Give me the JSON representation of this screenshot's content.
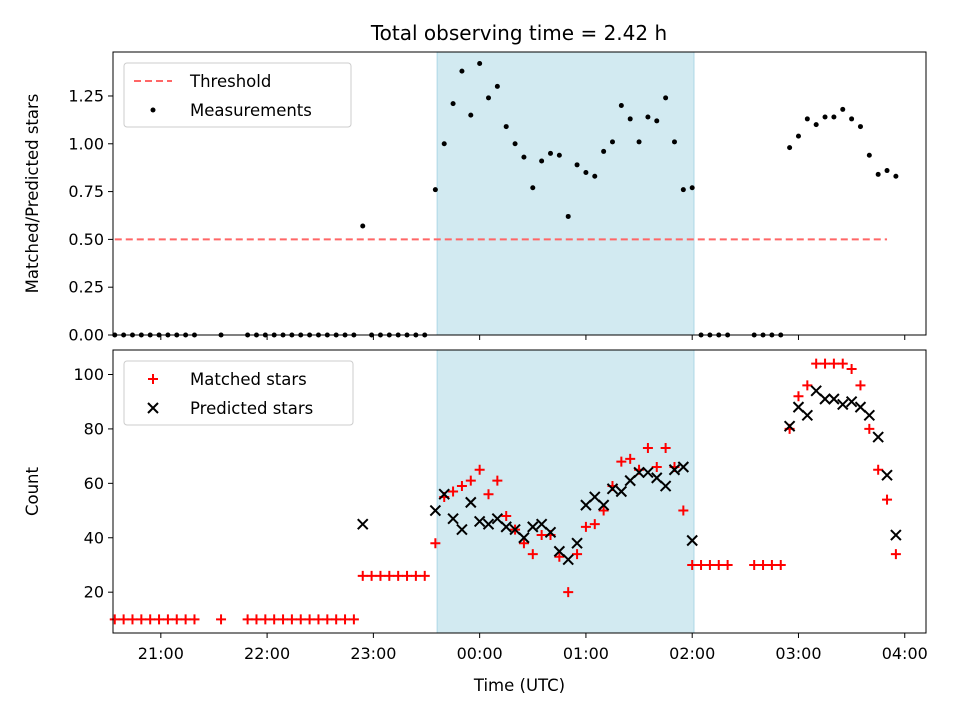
{
  "title": "Total observing time = 2.42 h",
  "colors": {
    "band": "#add8e6",
    "threshold": "#ff6666",
    "matched": "#ff0000",
    "predicted": "#000000",
    "measurement": "#000000"
  },
  "chart_data": [
    {
      "type": "scatter",
      "xlabel": "",
      "ylabel": "Matched/Predicted stars",
      "xlim": [
        "20:33",
        "04:12"
      ],
      "ylim": [
        0,
        1.48
      ],
      "yticks": [
        "0.00",
        "0.25",
        "0.50",
        "0.75",
        "1.00",
        "1.25"
      ],
      "shaded_interval": [
        "23:36",
        "02:01"
      ],
      "legend_position": "upper-left",
      "series": [
        {
          "name": "Threshold",
          "kind": "dashed-line",
          "x": [
            "20:34",
            "03:50"
          ],
          "y": [
            0.5,
            0.5
          ]
        },
        {
          "name": "Measurements",
          "kind": "dots",
          "points": [
            [
              "20:34",
              0
            ],
            [
              "20:39",
              0
            ],
            [
              "20:44",
              0
            ],
            [
              "20:49",
              0
            ],
            [
              "20:54",
              0
            ],
            [
              "20:59",
              0
            ],
            [
              "21:04",
              0
            ],
            [
              "21:09",
              0
            ],
            [
              "21:14",
              0
            ],
            [
              "21:19",
              0
            ],
            [
              "21:34",
              0
            ],
            [
              "21:49",
              0
            ],
            [
              "21:54",
              0
            ],
            [
              "21:59",
              0
            ],
            [
              "22:04",
              0
            ],
            [
              "22:09",
              0
            ],
            [
              "22:14",
              0
            ],
            [
              "22:19",
              0
            ],
            [
              "22:24",
              0
            ],
            [
              "22:29",
              0
            ],
            [
              "22:34",
              0
            ],
            [
              "22:39",
              0
            ],
            [
              "22:44",
              0
            ],
            [
              "22:49",
              0
            ],
            [
              "22:54",
              0.57
            ],
            [
              "22:59",
              0
            ],
            [
              "23:04",
              0
            ],
            [
              "23:09",
              0
            ],
            [
              "23:14",
              0
            ],
            [
              "23:19",
              0
            ],
            [
              "23:24",
              0
            ],
            [
              "23:29",
              0
            ],
            [
              "23:35",
              0.76
            ],
            [
              "23:40",
              1.0
            ],
            [
              "23:45",
              1.21
            ],
            [
              "23:50",
              1.38
            ],
            [
              "23:55",
              1.15
            ],
            [
              "00:00",
              1.42
            ],
            [
              "00:05",
              1.24
            ],
            [
              "00:10",
              1.3
            ],
            [
              "00:15",
              1.09
            ],
            [
              "00:20",
              1.0
            ],
            [
              "00:25",
              0.93
            ],
            [
              "00:30",
              0.77
            ],
            [
              "00:35",
              0.91
            ],
            [
              "00:40",
              0.95
            ],
            [
              "00:45",
              0.94
            ],
            [
              "00:50",
              0.62
            ],
            [
              "00:55",
              0.89
            ],
            [
              "01:00",
              0.85
            ],
            [
              "01:05",
              0.83
            ],
            [
              "01:10",
              0.96
            ],
            [
              "01:15",
              1.01
            ],
            [
              "01:20",
              1.2
            ],
            [
              "01:25",
              1.13
            ],
            [
              "01:30",
              1.01
            ],
            [
              "01:35",
              1.14
            ],
            [
              "01:40",
              1.12
            ],
            [
              "01:45",
              1.24
            ],
            [
              "01:50",
              1.01
            ],
            [
              "01:55",
              0.76
            ],
            [
              "02:00",
              0.77
            ],
            [
              "02:05",
              0
            ],
            [
              "02:10",
              0
            ],
            [
              "02:15",
              0
            ],
            [
              "02:20",
              0
            ],
            [
              "02:35",
              0
            ],
            [
              "02:40",
              0
            ],
            [
              "02:45",
              0
            ],
            [
              "02:50",
              0
            ],
            [
              "02:55",
              0.98
            ],
            [
              "03:00",
              1.04
            ],
            [
              "03:05",
              1.13
            ],
            [
              "03:10",
              1.1
            ],
            [
              "03:15",
              1.14
            ],
            [
              "03:20",
              1.14
            ],
            [
              "03:25",
              1.18
            ],
            [
              "03:30",
              1.13
            ],
            [
              "03:35",
              1.09
            ],
            [
              "03:40",
              0.94
            ],
            [
              "03:45",
              0.84
            ],
            [
              "03:50",
              0.86
            ],
            [
              "03:55",
              0.83
            ]
          ]
        }
      ]
    },
    {
      "type": "scatter",
      "xlabel": "Time (UTC)",
      "ylabel": "Count",
      "xlim": [
        "20:33",
        "04:12"
      ],
      "ylim": [
        5,
        109
      ],
      "yticks": [
        "20",
        "40",
        "60",
        "80",
        "100"
      ],
      "xticks": [
        "21:00",
        "22:00",
        "23:00",
        "00:00",
        "01:00",
        "02:00",
        "03:00",
        "04:00"
      ],
      "shaded_interval": [
        "23:36",
        "02:01"
      ],
      "legend_position": "upper-left",
      "series": [
        {
          "name": "Matched stars",
          "marker": "plus",
          "points": [
            [
              "20:34",
              10
            ],
            [
              "20:39",
              10
            ],
            [
              "20:44",
              10
            ],
            [
              "20:49",
              10
            ],
            [
              "20:54",
              10
            ],
            [
              "20:59",
              10
            ],
            [
              "21:04",
              10
            ],
            [
              "21:09",
              10
            ],
            [
              "21:14",
              10
            ],
            [
              "21:19",
              10
            ],
            [
              "21:34",
              10
            ],
            [
              "21:49",
              10
            ],
            [
              "21:54",
              10
            ],
            [
              "21:59",
              10
            ],
            [
              "22:04",
              10
            ],
            [
              "22:09",
              10
            ],
            [
              "22:14",
              10
            ],
            [
              "22:19",
              10
            ],
            [
              "22:24",
              10
            ],
            [
              "22:29",
              10
            ],
            [
              "22:34",
              10
            ],
            [
              "22:39",
              10
            ],
            [
              "22:44",
              10
            ],
            [
              "22:49",
              10
            ],
            [
              "22:54",
              26
            ],
            [
              "22:59",
              26
            ],
            [
              "23:04",
              26
            ],
            [
              "23:09",
              26
            ],
            [
              "23:14",
              26
            ],
            [
              "23:19",
              26
            ],
            [
              "23:24",
              26
            ],
            [
              "23:29",
              26
            ],
            [
              "23:35",
              38
            ],
            [
              "23:40",
              55
            ],
            [
              "23:45",
              57
            ],
            [
              "23:50",
              59
            ],
            [
              "23:55",
              61
            ],
            [
              "00:00",
              65
            ],
            [
              "00:05",
              56
            ],
            [
              "00:10",
              61
            ],
            [
              "00:15",
              48
            ],
            [
              "00:20",
              43
            ],
            [
              "00:25",
              38
            ],
            [
              "00:30",
              34
            ],
            [
              "00:35",
              41
            ],
            [
              "00:40",
              41
            ],
            [
              "00:45",
              33
            ],
            [
              "00:50",
              20
            ],
            [
              "00:55",
              34
            ],
            [
              "01:00",
              44
            ],
            [
              "01:05",
              45
            ],
            [
              "01:10",
              50
            ],
            [
              "01:15",
              59
            ],
            [
              "01:20",
              68
            ],
            [
              "01:25",
              69
            ],
            [
              "01:30",
              65
            ],
            [
              "01:35",
              73
            ],
            [
              "01:40",
              66
            ],
            [
              "01:45",
              73
            ],
            [
              "01:50",
              66
            ],
            [
              "01:55",
              50
            ],
            [
              "02:00",
              30
            ],
            [
              "02:05",
              30
            ],
            [
              "02:10",
              30
            ],
            [
              "02:15",
              30
            ],
            [
              "02:20",
              30
            ],
            [
              "02:35",
              30
            ],
            [
              "02:40",
              30
            ],
            [
              "02:45",
              30
            ],
            [
              "02:50",
              30
            ],
            [
              "02:55",
              80
            ],
            [
              "03:00",
              92
            ],
            [
              "03:05",
              96
            ],
            [
              "03:10",
              104
            ],
            [
              "03:15",
              104
            ],
            [
              "03:20",
              104
            ],
            [
              "03:25",
              104
            ],
            [
              "03:30",
              102
            ],
            [
              "03:35",
              96
            ],
            [
              "03:40",
              80
            ],
            [
              "03:45",
              65
            ],
            [
              "03:50",
              54
            ],
            [
              "03:55",
              34
            ]
          ]
        },
        {
          "name": "Predicted stars",
          "marker": "x",
          "points": [
            [
              "22:54",
              45
            ],
            [
              "23:35",
              50
            ],
            [
              "23:40",
              56
            ],
            [
              "23:45",
              47
            ],
            [
              "23:50",
              43
            ],
            [
              "23:55",
              53
            ],
            [
              "00:00",
              46
            ],
            [
              "00:05",
              45
            ],
            [
              "00:10",
              47
            ],
            [
              "00:15",
              44
            ],
            [
              "00:20",
              43
            ],
            [
              "00:25",
              40
            ],
            [
              "00:30",
              44
            ],
            [
              "00:35",
              45
            ],
            [
              "00:40",
              42
            ],
            [
              "00:45",
              35
            ],
            [
              "00:50",
              32
            ],
            [
              "00:55",
              38
            ],
            [
              "01:00",
              52
            ],
            [
              "01:05",
              55
            ],
            [
              "01:10",
              52
            ],
            [
              "01:15",
              58
            ],
            [
              "01:20",
              57
            ],
            [
              "01:25",
              61
            ],
            [
              "01:30",
              64
            ],
            [
              "01:35",
              64
            ],
            [
              "01:40",
              62
            ],
            [
              "01:45",
              59
            ],
            [
              "01:50",
              65
            ],
            [
              "01:55",
              66
            ],
            [
              "02:00",
              39
            ],
            [
              "02:55",
              81
            ],
            [
              "03:00",
              88
            ],
            [
              "03:05",
              85
            ],
            [
              "03:10",
              94
            ],
            [
              "03:15",
              91
            ],
            [
              "03:20",
              91
            ],
            [
              "03:25",
              89
            ],
            [
              "03:30",
              90
            ],
            [
              "03:35",
              88
            ],
            [
              "03:40",
              85
            ],
            [
              "03:45",
              77
            ],
            [
              "03:50",
              63
            ],
            [
              "03:55",
              41
            ]
          ]
        }
      ]
    }
  ]
}
